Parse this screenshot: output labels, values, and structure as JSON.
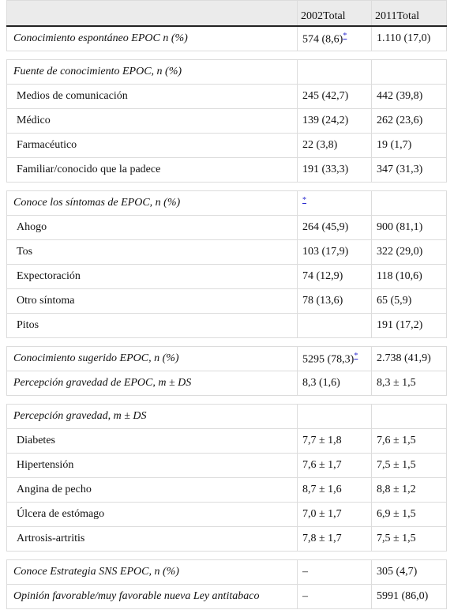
{
  "table": {
    "header": [
      "2002Total",
      "2011Total"
    ],
    "groups": [
      {
        "headings": [
          {
            "label": "Conocimiento espontáneo EPOC n (%)",
            "cells": [
              {
                "text": "574 (8,6)",
                "note": "*"
              },
              {
                "text": "1.110 (17,0)"
              }
            ]
          }
        ],
        "items": []
      },
      {
        "headings": [
          {
            "label": "Fuente de conocimiento EPOC, n (%)",
            "cells": [
              null,
              null
            ]
          }
        ],
        "items": [
          {
            "label": "Medios de comunicación",
            "cells": [
              {
                "text": "245 (42,7)"
              },
              {
                "text": "442 (39,8)"
              }
            ]
          },
          {
            "label": "Médico",
            "cells": [
              {
                "text": "139 (24,2)"
              },
              {
                "text": "262 (23,6)"
              }
            ]
          },
          {
            "label": "Farmacéutico",
            "cells": [
              {
                "text": "22 (3,8)"
              },
              {
                "text": "19 (1,7)"
              }
            ]
          },
          {
            "label": "Familiar/conocido que la padece",
            "cells": [
              {
                "text": "191 (33,3)"
              },
              {
                "text": "347 (31,3)"
              }
            ]
          }
        ]
      },
      {
        "headings": [
          {
            "label": "Conoce los síntomas de EPOC, n (%)",
            "cells": [
              {
                "note": "*"
              },
              null
            ]
          }
        ],
        "items": [
          {
            "label": "Ahogo",
            "cells": [
              {
                "text": "264 (45,9)"
              },
              {
                "text": "900 (81,1)"
              }
            ]
          },
          {
            "label": "Tos",
            "cells": [
              {
                "text": "103 (17,9)"
              },
              {
                "text": "322 (29,0)"
              }
            ]
          },
          {
            "label": "Expectoración",
            "cells": [
              {
                "text": "74 (12,9)"
              },
              {
                "text": "118 (10,6)"
              }
            ]
          },
          {
            "label": "Otro síntoma",
            "cells": [
              {
                "text": "78 (13,6)"
              },
              {
                "text": "65 (5,9)"
              }
            ]
          },
          {
            "label": "Pitos",
            "cells": [
              null,
              {
                "text": "191 (17,2)"
              }
            ]
          }
        ]
      },
      {
        "headings": [
          {
            "label": "Conocimiento sugerido EPOC, n (%)",
            "cells": [
              {
                "text": "5295 (78,3)",
                "note": "*"
              },
              {
                "text": "2.738 (41,9)"
              }
            ]
          },
          {
            "label": "Percepción gravedad de EPOC, m ± DS",
            "cells": [
              {
                "text": "8,3 (1,6)"
              },
              {
                "text": "8,3 ± 1,5"
              }
            ]
          }
        ],
        "items": []
      },
      {
        "headings": [
          {
            "label": "Percepción gravedad, m ± DS",
            "cells": [
              null,
              null
            ]
          }
        ],
        "items": [
          {
            "label": "Diabetes",
            "cells": [
              {
                "text": "7,7 ± 1,8"
              },
              {
                "text": "7,6 ± 1,5"
              }
            ]
          },
          {
            "label": "Hipertensión",
            "cells": [
              {
                "text": "7,6 ± 1,7"
              },
              {
                "text": "7,5 ± 1,5"
              }
            ]
          },
          {
            "label": "Angina de pecho",
            "cells": [
              {
                "text": "8,7 ± 1,6"
              },
              {
                "text": "8,8 ± 1,2"
              }
            ]
          },
          {
            "label": "Úlcera de estómago",
            "cells": [
              {
                "text": "7,0 ± 1,7"
              },
              {
                "text": "6,9 ± 1,5"
              }
            ]
          },
          {
            "label": "Artrosis-artritis",
            "cells": [
              {
                "text": "7,8 ± 1,7"
              },
              {
                "text": "7,5 ± 1,5"
              }
            ]
          }
        ]
      },
      {
        "headings": [
          {
            "label": "Conoce Estrategia SNS EPOC, n (%)",
            "cells": [
              {
                "text": "–"
              },
              {
                "text": "305 (4,7)"
              }
            ]
          },
          {
            "label": "Opinión favorable/muy favorable nueva Ley antitabaco",
            "cells": [
              {
                "text": "–"
              },
              {
                "text": "5991 (86,0)"
              }
            ]
          }
        ],
        "items": []
      }
    ]
  }
}
